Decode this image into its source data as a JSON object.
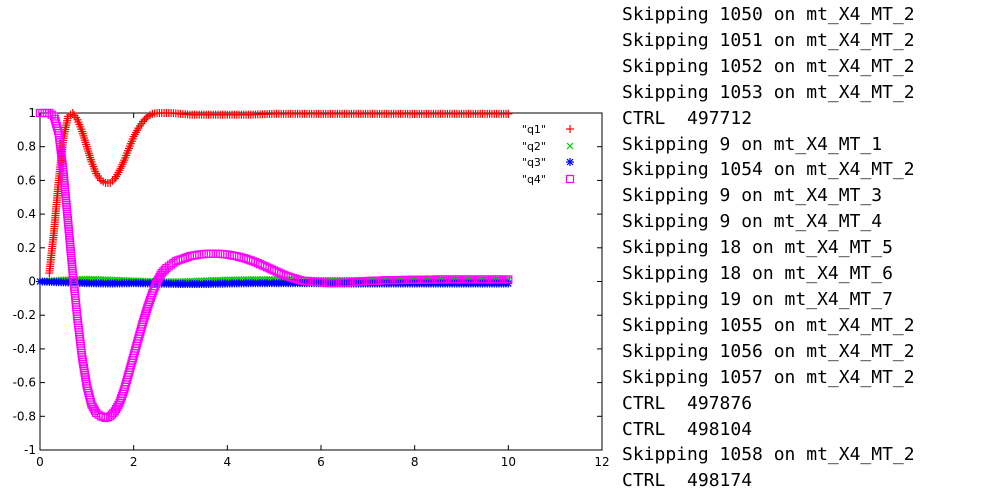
{
  "chart_data": {
    "type": "scatter",
    "title": "",
    "xlabel": "",
    "ylabel": "",
    "xlim": [
      0,
      12
    ],
    "ylim": [
      -1,
      1
    ],
    "x_ticks": [
      "0",
      "2",
      "4",
      "6",
      "8",
      "10",
      "12"
    ],
    "y_ticks": [
      "1",
      "0.8",
      "0.6",
      "0.4",
      "0.2",
      "0",
      "-0.2",
      "-0.4",
      "-0.6",
      "-0.8",
      "-1"
    ],
    "legend_position": "top-right",
    "series": [
      {
        "name": "\"q1\"",
        "color": "#ff0000",
        "marker": "plus",
        "x": [
          0.2,
          0.3,
          0.4,
          0.5,
          0.6,
          0.7,
          0.8,
          0.9,
          1.0,
          1.1,
          1.2,
          1.3,
          1.4,
          1.5,
          1.6,
          1.7,
          1.8,
          1.9,
          2.0,
          2.1,
          2.2,
          2.3,
          2.4,
          2.5,
          2.6,
          2.8,
          3.0,
          3.2,
          3.4,
          3.6,
          3.8,
          4.0,
          4.5,
          5.0,
          5.5,
          6.0,
          6.5,
          7.0,
          7.5,
          8.0,
          8.5,
          9.0,
          9.5,
          10.0
        ],
        "y": [
          0.05,
          0.3,
          0.6,
          0.85,
          0.98,
          1.0,
          0.96,
          0.89,
          0.8,
          0.71,
          0.64,
          0.6,
          0.585,
          0.585,
          0.61,
          0.66,
          0.72,
          0.79,
          0.86,
          0.91,
          0.95,
          0.98,
          0.995,
          1.0,
          1.0,
          1.0,
          0.995,
          0.99,
          0.99,
          0.99,
          0.99,
          0.99,
          0.99,
          0.995,
          0.995,
          0.995,
          0.995,
          0.995,
          0.995,
          0.995,
          0.995,
          0.995,
          0.995,
          0.995
        ]
      },
      {
        "name": "\"q2\"",
        "color": "#00cc00",
        "marker": "cross",
        "x": [
          0.0,
          0.5,
          1.0,
          1.5,
          2.0,
          2.5,
          3.0,
          3.5,
          4.0,
          4.5,
          5.0,
          5.5,
          6.0,
          6.5,
          7.0,
          7.5,
          8.0,
          8.5,
          9.0,
          9.5,
          10.0
        ],
        "y": [
          0.0,
          0.01,
          0.015,
          0.01,
          0.005,
          0.0,
          0.0,
          0.005,
          0.01,
          0.012,
          0.012,
          0.01,
          0.008,
          0.008,
          0.008,
          0.008,
          0.008,
          0.008,
          0.008,
          0.008,
          0.008
        ]
      },
      {
        "name": "\"q3\"",
        "color": "#0000ff",
        "marker": "star",
        "x": [
          0.0,
          0.5,
          1.0,
          1.5,
          2.0,
          2.5,
          3.0,
          3.5,
          4.0,
          4.5,
          5.0,
          5.5,
          6.0,
          6.5,
          7.0,
          7.5,
          8.0,
          8.5,
          9.0,
          9.5,
          10.0
        ],
        "y": [
          0.0,
          -0.005,
          -0.01,
          -0.012,
          -0.01,
          -0.012,
          -0.015,
          -0.015,
          -0.012,
          -0.01,
          -0.01,
          -0.01,
          -0.01,
          -0.012,
          -0.012,
          -0.012,
          -0.012,
          -0.012,
          -0.012,
          -0.012,
          -0.012
        ]
      },
      {
        "name": "\"q4\"",
        "color": "#ff00ff",
        "marker": "square",
        "x": [
          0.0,
          0.1,
          0.2,
          0.3,
          0.4,
          0.5,
          0.6,
          0.7,
          0.8,
          0.9,
          1.0,
          1.1,
          1.2,
          1.3,
          1.4,
          1.5,
          1.6,
          1.7,
          1.8,
          1.9,
          2.0,
          2.1,
          2.2,
          2.3,
          2.4,
          2.5,
          2.6,
          2.7,
          2.8,
          2.9,
          3.0,
          3.2,
          3.4,
          3.6,
          3.8,
          4.0,
          4.2,
          4.4,
          4.6,
          4.8,
          5.0,
          5.2,
          5.4,
          5.6,
          5.8,
          6.0,
          6.2,
          6.4,
          6.6,
          6.8,
          7.0,
          7.5,
          8.0,
          8.5,
          9.0,
          9.5,
          10.0
        ],
        "y": [
          1.0,
          1.0,
          1.0,
          0.98,
          0.88,
          0.65,
          0.35,
          0.05,
          -0.22,
          -0.45,
          -0.62,
          -0.73,
          -0.78,
          -0.8,
          -0.81,
          -0.8,
          -0.77,
          -0.72,
          -0.64,
          -0.54,
          -0.44,
          -0.34,
          -0.24,
          -0.15,
          -0.07,
          0.0,
          0.05,
          0.08,
          0.1,
          0.12,
          0.13,
          0.15,
          0.16,
          0.165,
          0.165,
          0.16,
          0.15,
          0.135,
          0.115,
          0.09,
          0.065,
          0.04,
          0.02,
          0.005,
          0.0,
          -0.005,
          -0.01,
          -0.008,
          -0.005,
          0.0,
          0.003,
          0.008,
          0.01,
          0.012,
          0.012,
          0.012,
          0.012
        ]
      }
    ]
  },
  "console": {
    "lines": [
      "Skipping 1050 on mt_X4_MT_2",
      "Skipping 1051 on mt_X4_MT_2",
      "Skipping 1052 on mt_X4_MT_2",
      "Skipping 1053 on mt_X4_MT_2",
      "CTRL  497712",
      "Skipping 9 on mt_X4_MT_1",
      "Skipping 1054 on mt_X4_MT_2",
      "Skipping 9 on mt_X4_MT_3",
      "Skipping 9 on mt_X4_MT_4",
      "Skipping 18 on mt_X4_MT_5",
      "Skipping 18 on mt_X4_MT_6",
      "Skipping 19 on mt_X4_MT_7",
      "Skipping 1055 on mt_X4_MT_2",
      "Skipping 1056 on mt_X4_MT_2",
      "Skipping 1057 on mt_X4_MT_2",
      "CTRL  497876",
      "CTRL  498104",
      "Skipping 1058 on mt_X4_MT_2",
      "CTRL  498174"
    ]
  }
}
